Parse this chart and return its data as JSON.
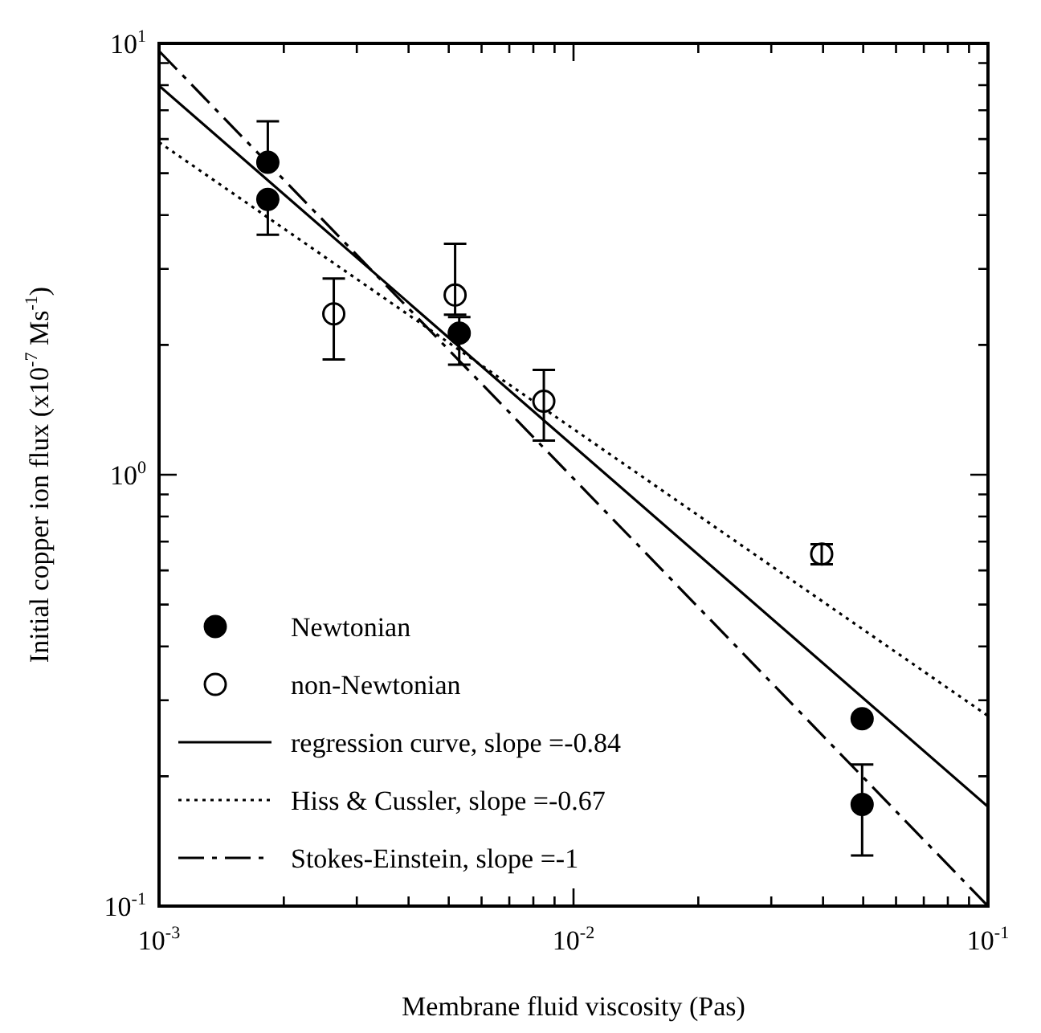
{
  "chart_data": {
    "type": "scatter",
    "xlabel": "Membrane fluid viscosity (Pas)",
    "ylabel": "Initial copper ion flux (x10$^{-7}$ Ms$^{-1}$)",
    "log": "xy",
    "xlim": [
      0.001,
      0.1
    ],
    "ylim": [
      0.1,
      10
    ],
    "xticks": [
      {
        "value": 0.001,
        "label": "10$^{-3}$"
      },
      {
        "value": 0.002,
        "label": null
      },
      {
        "value": 0.003,
        "label": null
      },
      {
        "value": 0.004,
        "label": null
      },
      {
        "value": 0.005,
        "label": null
      },
      {
        "value": 0.006,
        "label": null
      },
      {
        "value": 0.007,
        "label": null
      },
      {
        "value": 0.008,
        "label": null
      },
      {
        "value": 0.009,
        "label": null
      },
      {
        "value": 0.01,
        "label": "10$^{-2}$"
      },
      {
        "value": 0.02,
        "label": null
      },
      {
        "value": 0.03,
        "label": null
      },
      {
        "value": 0.04,
        "label": null
      },
      {
        "value": 0.05,
        "label": null
      },
      {
        "value": 0.06,
        "label": null
      },
      {
        "value": 0.07,
        "label": null
      },
      {
        "value": 0.08,
        "label": null
      },
      {
        "value": 0.09,
        "label": null
      },
      {
        "value": 0.1,
        "label": "10$^{-1}$"
      }
    ],
    "yticks": [
      {
        "value": 0.1,
        "label": "10$^{-1}$"
      },
      {
        "value": 0.2,
        "label": null
      },
      {
        "value": 0.3,
        "label": null
      },
      {
        "value": 0.4,
        "label": null
      },
      {
        "value": 0.5,
        "label": null
      },
      {
        "value": 0.6,
        "label": null
      },
      {
        "value": 0.7,
        "label": null
      },
      {
        "value": 0.8,
        "label": null
      },
      {
        "value": 0.9,
        "label": null
      },
      {
        "value": 1,
        "label": "10$^{0}$"
      },
      {
        "value": 2,
        "label": null
      },
      {
        "value": 3,
        "label": null
      },
      {
        "value": 4,
        "label": null
      },
      {
        "value": 5,
        "label": null
      },
      {
        "value": 6,
        "label": null
      },
      {
        "value": 7,
        "label": null
      },
      {
        "value": 8,
        "label": null
      },
      {
        "value": 9,
        "label": null
      },
      {
        "value": 10,
        "label": "10$^{1}$"
      }
    ],
    "grid": false,
    "legend": "bottom left",
    "series": [
      {
        "name": "Newtonian",
        "marker": "circle",
        "color": "#000000",
        "x": [
          0.00183,
          0.00183,
          0.0053,
          0.0497,
          0.0497
        ],
        "values": [
          5.3,
          4.35,
          2.13,
          0.272,
          0.172
        ],
        "errors": [
          [
            5.3,
            6.6
          ],
          [
            3.6,
            4.35
          ],
          [
            1.8,
            2.32
          ],
          null,
          [
            0.131,
            0.213
          ]
        ]
      },
      {
        "name": "non-Newtonian",
        "marker": "circle",
        "color": "#ffffff",
        "x": [
          0.00264,
          0.00518,
          0.00848,
          0.0397
        ],
        "values": [
          2.36,
          2.61,
          1.48,
          0.655
        ],
        "errors": [
          [
            1.85,
            2.85
          ],
          [
            2.35,
            3.43
          ],
          [
            1.2,
            1.75
          ],
          [
            0.62,
            0.69
          ]
        ]
      },
      {
        "name": "regression curve, slope =-0.84",
        "type": "line",
        "line_style": "solid",
        "color": "#000000",
        "x": [
          0.001,
          0.1
        ],
        "values": [
          7.98,
          0.17
        ]
      },
      {
        "name": "Hiss & Cussler, slope =-0.67",
        "type": "line",
        "line_style": "dotted",
        "color": "#000000",
        "x": [
          0.001,
          0.1
        ],
        "values": [
          5.9,
          0.276
        ]
      },
      {
        "name": "Stokes-Einstein, slope =-1",
        "type": "line",
        "line_style": "dashed",
        "color": "#000000",
        "x": [
          0.001,
          0.1
        ],
        "values": [
          9.6,
          0.1
        ]
      }
    ]
  }
}
